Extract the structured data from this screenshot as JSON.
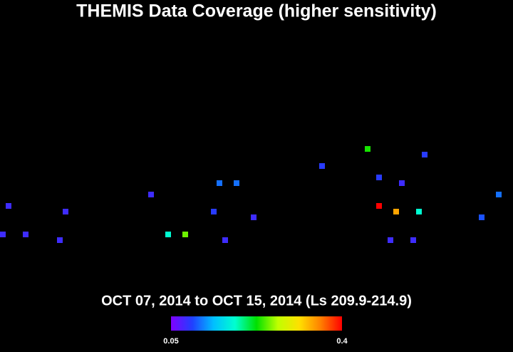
{
  "chart_data": {
    "type": "scatter",
    "title": "THEMIS Data Coverage (higher sensitivity)",
    "subtitle": "OCT 07, 2014 to OCT 15, 2014 (Ls 209.9-214.9)",
    "x": [
      6,
      2,
      18,
      42,
      46,
      106,
      118,
      130,
      150,
      154,
      166,
      158,
      178,
      226,
      258,
      266,
      298,
      282,
      266,
      278,
      294,
      274,
      290,
      338,
      350
    ],
    "y": [
      -21,
      -41,
      -41,
      -45,
      -25,
      -13,
      -41,
      -41,
      -25,
      -5,
      -5,
      -45,
      -29,
      7,
      19,
      -1,
      15,
      -5,
      -21,
      -25,
      -25,
      -45,
      -45,
      -29,
      -13
    ],
    "values": [
      0.08,
      0.08,
      0.08,
      0.08,
      0.08,
      0.08,
      0.18,
      0.25,
      0.09,
      0.11,
      0.11,
      0.08,
      0.08,
      0.09,
      0.23,
      0.09,
      0.09,
      0.08,
      0.4,
      0.34,
      0.18,
      0.08,
      0.08,
      0.1,
      0.11
    ],
    "xlim": [
      0,
      360
    ],
    "ylim": [
      -90,
      90
    ],
    "clim": [
      0.05,
      0.4
    ],
    "cticks": [
      0.05,
      0.4
    ],
    "colormap": [
      "#8000ff",
      "#2040ff",
      "#00c0ff",
      "#00ffd0",
      "#00e000",
      "#c0ff00",
      "#ffe000",
      "#ff8000",
      "#ff0000"
    ]
  }
}
